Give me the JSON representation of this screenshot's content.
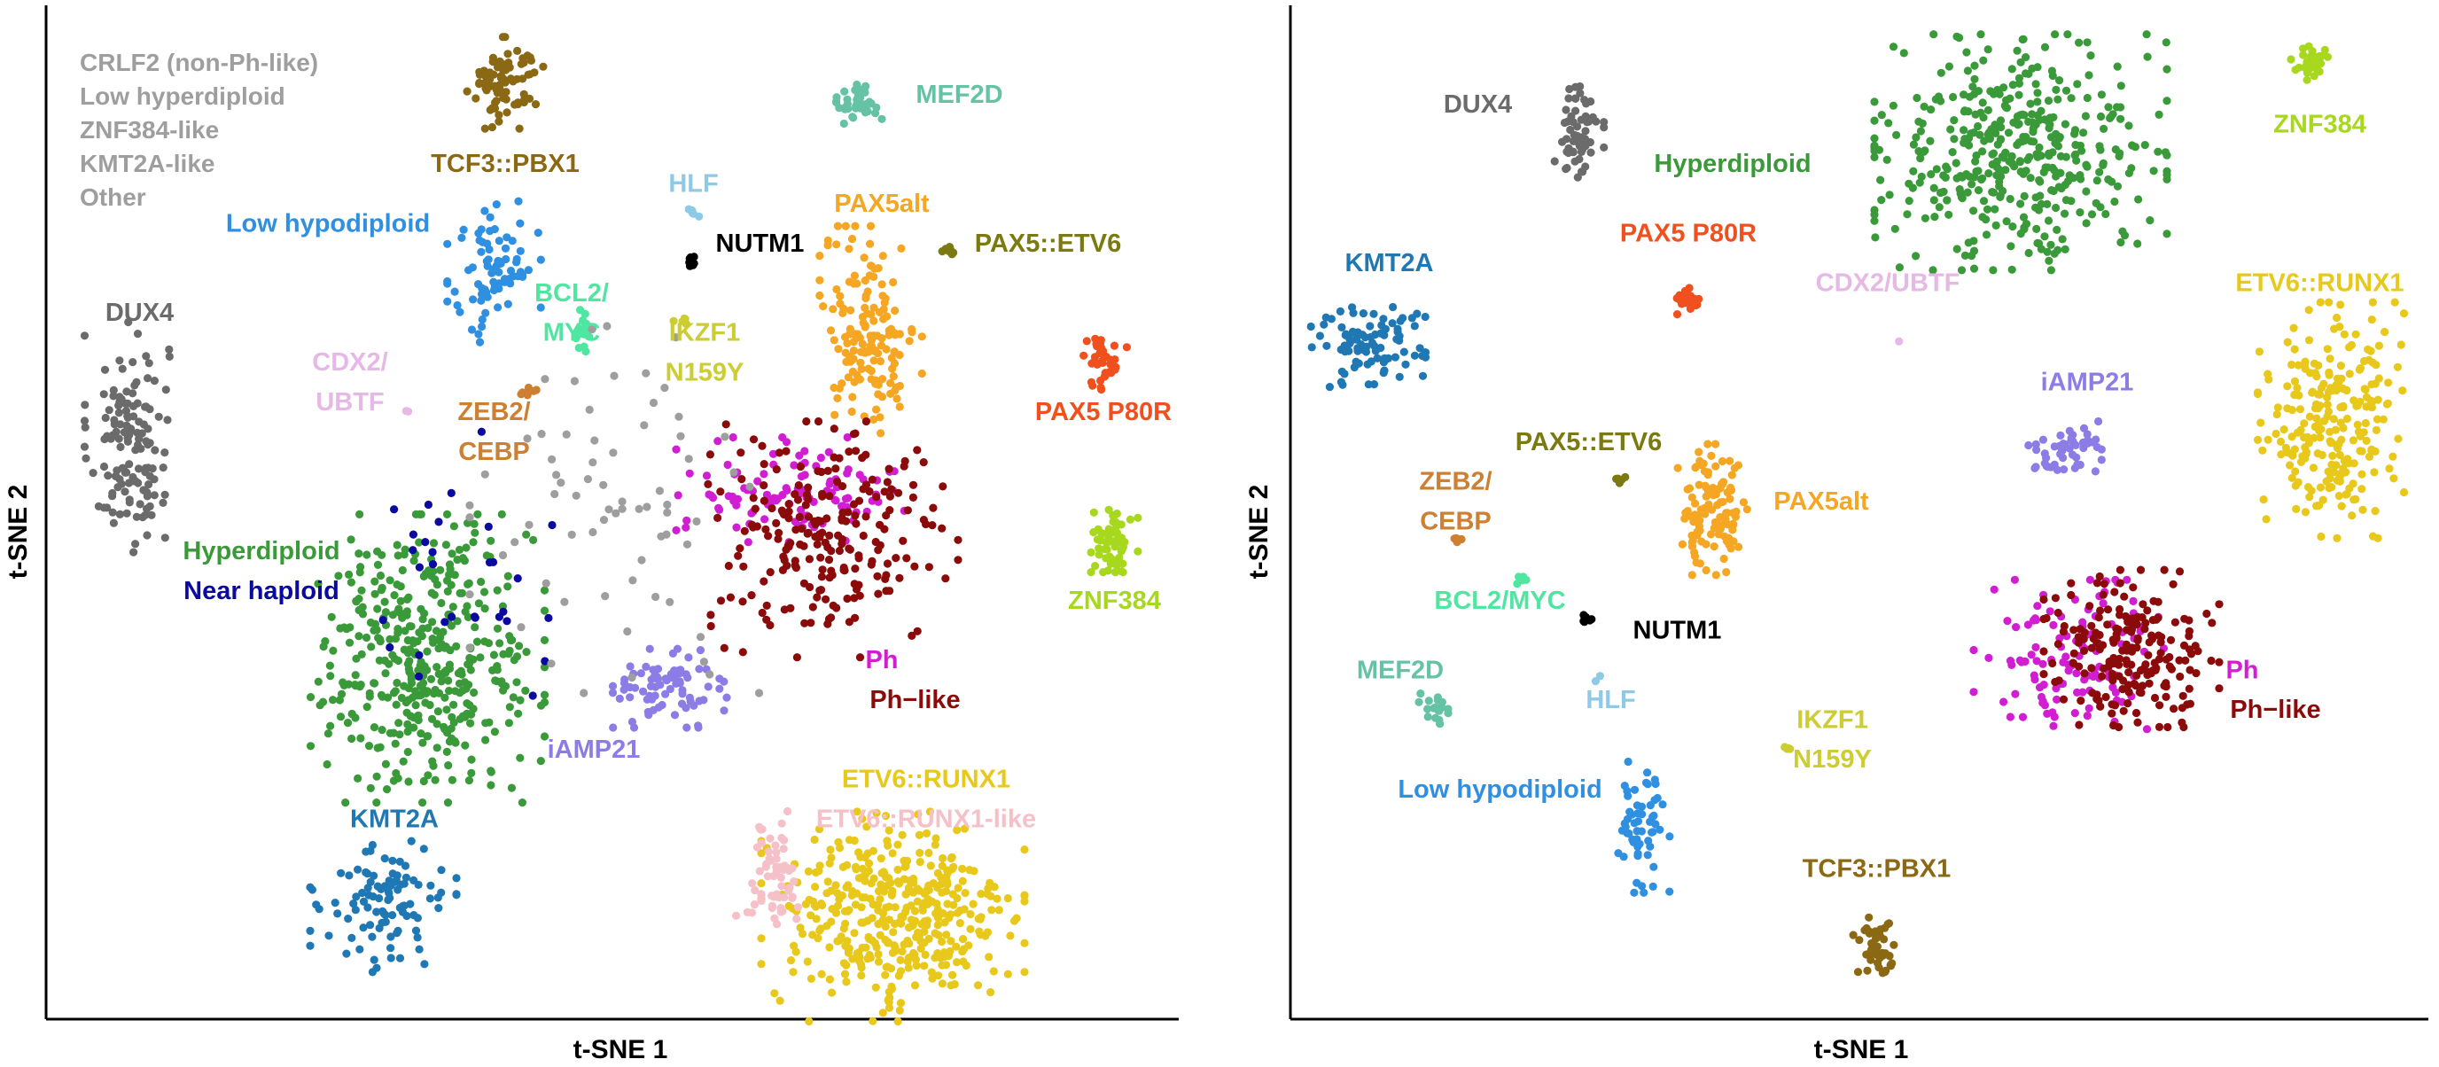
{
  "colors": {
    "grey": "#9e9e9e",
    "dux4": "#6b6b6b",
    "tcf3": "#8b6914",
    "mef2d": "#66c2a5",
    "hlf": "#8ecae6",
    "nutm1": "#000000",
    "lowhypo": "#2f8fe0",
    "bcl2": "#4ee6a0",
    "pax5alt": "#f5a623",
    "pax5etv6": "#7a7a10",
    "ikzf1": "#cccc33",
    "pax5p80r": "#f0501e",
    "cdx2": "#e6b8e6",
    "zeb2": "#cd7f32",
    "hyper": "#3a9a3a",
    "nearhap": "#0a0aa0",
    "iamp21": "#8c7ce6",
    "ph": "#d21ed2",
    "phlike": "#8b0a0a",
    "znf384": "#a8d81e",
    "kmt2a": "#1f78b4",
    "etv6": "#e8c81a",
    "etv6like": "#f5c0c8"
  },
  "chart_data": [
    {
      "type": "scatter",
      "panel": "left",
      "xlabel": "t-SNE 1",
      "ylabel": "t-SNE 2",
      "xlim": [
        0,
        100
      ],
      "ylim": [
        0,
        100
      ],
      "legend_entries": [
        "CRLF2 (non-Ph-like)",
        "Low hyperdiploid",
        "ZNF384-like",
        "KMT2A-like",
        "Other"
      ],
      "series": [
        {
          "name": "DUX4",
          "color": "dux4",
          "center": [
            6,
            57
          ],
          "spread": [
            3,
            9
          ],
          "n": 140
        },
        {
          "name": "TCF3::PBX1",
          "color": "tcf3",
          "center": [
            40,
            93
          ],
          "spread": [
            2.6,
            3.5
          ],
          "n": 80
        },
        {
          "name": "MEF2D",
          "color": "mef2d",
          "center": [
            72,
            91
          ],
          "spread": [
            1.6,
            1.6
          ],
          "n": 40
        },
        {
          "name": "HLF",
          "color": "hlf",
          "center": [
            57,
            80
          ],
          "spread": [
            0.5,
            0.5
          ],
          "n": 5
        },
        {
          "name": "NUTM1",
          "color": "nutm1",
          "center": [
            57,
            75
          ],
          "spread": [
            0.6,
            0.6
          ],
          "n": 8
        },
        {
          "name": "Low hypodiploid",
          "color": "lowhypo",
          "center": [
            39,
            74
          ],
          "spread": [
            3.2,
            6
          ],
          "n": 80
        },
        {
          "name": "BCL2/MYC",
          "color": "bcl2",
          "center": [
            47,
            68
          ],
          "spread": [
            0.8,
            1.6
          ],
          "n": 20
        },
        {
          "name": "PAX5alt",
          "color": "pax5alt",
          "center": [
            73,
            68
          ],
          "spread": [
            3.5,
            8
          ],
          "n": 150
        },
        {
          "name": "PAX5::ETV6",
          "color": "pax5etv6",
          "center": [
            80,
            76
          ],
          "spread": [
            0.6,
            0.6
          ],
          "n": 8
        },
        {
          "name": "IKZF1 N159Y",
          "color": "ikzf1",
          "center": [
            56,
            69
          ],
          "spread": [
            0.6,
            0.4
          ],
          "n": 6
        },
        {
          "name": "PAX5 P80R",
          "color": "pax5p80r",
          "center": [
            94,
            65
          ],
          "spread": [
            1.6,
            2.2
          ],
          "n": 40
        },
        {
          "name": "CDX2/UBTF",
          "color": "cdx2",
          "center": [
            31,
            60
          ],
          "spread": [
            0.3,
            0.3
          ],
          "n": 2
        },
        {
          "name": "ZEB2/CEBP",
          "color": "zeb2",
          "center": [
            42,
            62
          ],
          "spread": [
            0.8,
            0.5
          ],
          "n": 6
        },
        {
          "name": "Hyperdiploid",
          "color": "hyper",
          "center": [
            33,
            35
          ],
          "spread": [
            8,
            11
          ],
          "n": 420
        },
        {
          "name": "Near haploid",
          "color": "nearhap",
          "center": [
            35,
            42
          ],
          "spread": [
            7,
            12
          ],
          "n": 30
        },
        {
          "name": "iAMP21",
          "color": "iamp21",
          "center": [
            55,
            32
          ],
          "spread": [
            4,
            3
          ],
          "n": 80
        },
        {
          "name": "Ph",
          "color": "ph",
          "center": [
            66,
            52
          ],
          "spread": [
            8,
            4
          ],
          "n": 110
        },
        {
          "name": "Ph-like",
          "color": "phlike",
          "center": [
            69,
            47
          ],
          "spread": [
            9,
            9
          ],
          "n": 220
        },
        {
          "name": "ZNF384",
          "color": "znf384",
          "center": [
            95,
            47
          ],
          "spread": [
            1.6,
            2.5
          ],
          "n": 60
        },
        {
          "name": "KMT2A",
          "color": "kmt2a",
          "center": [
            29,
            10
          ],
          "spread": [
            5,
            5
          ],
          "n": 100
        },
        {
          "name": "ETV6::RUNX1",
          "color": "etv6",
          "center": [
            75,
            9
          ],
          "spread": [
            9,
            8
          ],
          "n": 400
        },
        {
          "name": "ETV6::RUNX1-like",
          "color": "etv6like",
          "center": [
            64,
            13
          ],
          "spread": [
            2.5,
            5
          ],
          "n": 60
        },
        {
          "name": "Other",
          "color": "grey",
          "center": [
            50,
            50
          ],
          "spread": [
            10,
            14
          ],
          "n": 70
        }
      ],
      "labels": [
        {
          "text": "TCF3::PBX1",
          "color": "tcf3",
          "at": [
            40,
            84
          ]
        },
        {
          "text": "MEF2D",
          "color": "mef2d",
          "at": [
            81,
            91
          ]
        },
        {
          "text": "HLF",
          "color": "hlf",
          "at": [
            57,
            82
          ]
        },
        {
          "text": "NUTM1",
          "color": "nutm1",
          "at": [
            63,
            76
          ]
        },
        {
          "text": "Low hypodiploid",
          "color": "lowhypo",
          "at": [
            24,
            78
          ]
        },
        {
          "text": "BCL2/",
          "color": "bcl2",
          "at": [
            46,
            71
          ]
        },
        {
          "text": "MYC",
          "color": "bcl2",
          "at": [
            46,
            67
          ]
        },
        {
          "text": "PAX5alt",
          "color": "pax5alt",
          "at": [
            74,
            80
          ]
        },
        {
          "text": "PAX5::ETV6",
          "color": "pax5etv6",
          "at": [
            89,
            76
          ]
        },
        {
          "text": "IKZF1",
          "color": "ikzf1",
          "at": [
            58,
            67
          ]
        },
        {
          "text": "N159Y",
          "color": "ikzf1",
          "at": [
            58,
            63
          ]
        },
        {
          "text": "PAX5 P80R",
          "color": "pax5p80r",
          "at": [
            94,
            59
          ]
        },
        {
          "text": "DUX4",
          "color": "dux4",
          "at": [
            7,
            69
          ]
        },
        {
          "text": "CDX2/",
          "color": "cdx2",
          "at": [
            26,
            64
          ]
        },
        {
          "text": "UBTF",
          "color": "cdx2",
          "at": [
            26,
            60
          ]
        },
        {
          "text": "ZEB2/",
          "color": "zeb2",
          "at": [
            39,
            59
          ]
        },
        {
          "text": "CEBP",
          "color": "zeb2",
          "at": [
            39,
            55
          ]
        },
        {
          "text": "Hyperdiploid",
          "color": "hyper",
          "at": [
            18,
            45
          ]
        },
        {
          "text": "Near haploid",
          "color": "nearhap",
          "at": [
            18,
            41
          ]
        },
        {
          "text": "iAMP21",
          "color": "iamp21",
          "at": [
            48,
            25
          ]
        },
        {
          "text": "Ph",
          "color": "ph",
          "at": [
            74,
            34
          ]
        },
        {
          "text": "Ph−like",
          "color": "phlike",
          "at": [
            77,
            30
          ]
        },
        {
          "text": "ZNF384",
          "color": "znf384",
          "at": [
            95,
            40
          ]
        },
        {
          "text": "KMT2A",
          "color": "kmt2a",
          "at": [
            30,
            18
          ]
        },
        {
          "text": "ETV6::RUNX1",
          "color": "etv6",
          "at": [
            78,
            22
          ]
        },
        {
          "text": "ETV6::RUNX1-like",
          "color": "etv6like",
          "at": [
            78,
            18
          ]
        }
      ]
    },
    {
      "type": "scatter",
      "panel": "right",
      "xlabel": "t-SNE 1",
      "ylabel": "t-SNE 2",
      "xlim": [
        0,
        100
      ],
      "ylim": [
        0,
        100
      ],
      "legend_entries": [],
      "series": [
        {
          "name": "DUX4",
          "color": "dux4",
          "center": [
            24,
            88
          ],
          "spread": [
            1.8,
            4
          ],
          "n": 60
        },
        {
          "name": "Hyperdiploid",
          "color": "hyper",
          "center": [
            64,
            86
          ],
          "spread": [
            10,
            9
          ],
          "n": 420
        },
        {
          "name": "ZNF384",
          "color": "znf384",
          "center": [
            90,
            95
          ],
          "spread": [
            1.3,
            1.3
          ],
          "n": 30
        },
        {
          "name": "KMT2A",
          "color": "kmt2a",
          "center": [
            5,
            67
          ],
          "spread": [
            4,
            4
          ],
          "n": 90
        },
        {
          "name": "PAX5 P80R",
          "color": "pax5p80r",
          "center": [
            34,
            71
          ],
          "spread": [
            1,
            1
          ],
          "n": 25
        },
        {
          "name": "CDX2/UBTF",
          "color": "cdx2",
          "center": [
            53,
            67
          ],
          "spread": [
            0.2,
            0.2
          ],
          "n": 1
        },
        {
          "name": "ETV6::RUNX1",
          "color": "etv6",
          "center": [
            92,
            59
          ],
          "spread": [
            5,
            9
          ],
          "n": 240
        },
        {
          "name": "iAMP21",
          "color": "iamp21",
          "center": [
            68,
            56
          ],
          "spread": [
            2.5,
            2.2
          ],
          "n": 50
        },
        {
          "name": "PAX5::ETV6",
          "color": "pax5etv6",
          "center": [
            28,
            53
          ],
          "spread": [
            0.4,
            0.4
          ],
          "n": 6
        },
        {
          "name": "PAX5alt",
          "color": "pax5alt",
          "center": [
            36,
            50
          ],
          "spread": [
            2.5,
            5
          ],
          "n": 110
        },
        {
          "name": "ZEB2/CEBP",
          "color": "zeb2",
          "center": [
            13,
            47
          ],
          "spread": [
            0.5,
            0.3
          ],
          "n": 5
        },
        {
          "name": "BCL2/MYC",
          "color": "bcl2",
          "center": [
            19,
            43
          ],
          "spread": [
            0.4,
            0.4
          ],
          "n": 5
        },
        {
          "name": "NUTM1",
          "color": "nutm1",
          "center": [
            25,
            39
          ],
          "spread": [
            0.5,
            0.5
          ],
          "n": 6
        },
        {
          "name": "MEF2D",
          "color": "mef2d",
          "center": [
            11,
            30
          ],
          "spread": [
            1,
            1.2
          ],
          "n": 20
        },
        {
          "name": "HLF",
          "color": "hlf",
          "center": [
            26,
            33
          ],
          "spread": [
            0.3,
            0.3
          ],
          "n": 2
        },
        {
          "name": "IKZF1 N159Y",
          "color": "ikzf1",
          "center": [
            43,
            26
          ],
          "spread": [
            0.4,
            0.3
          ],
          "n": 4
        },
        {
          "name": "Low hypodiploid",
          "color": "lowhypo",
          "center": [
            30,
            18
          ],
          "spread": [
            1.8,
            5
          ],
          "n": 60
        },
        {
          "name": "Ph",
          "color": "ph",
          "center": [
            69,
            35
          ],
          "spread": [
            7,
            6
          ],
          "n": 120
        },
        {
          "name": "Ph-like",
          "color": "phlike",
          "center": [
            74,
            36
          ],
          "spread": [
            6,
            6
          ],
          "n": 200
        },
        {
          "name": "TCF3::PBX1",
          "color": "tcf3",
          "center": [
            51,
            6
          ],
          "spread": [
            1.6,
            2.2
          ],
          "n": 50
        }
      ],
      "labels": [
        {
          "text": "DUX4",
          "color": "dux4",
          "at": [
            15,
            90
          ]
        },
        {
          "text": "Hyperdiploid",
          "color": "hyper",
          "at": [
            38,
            84
          ]
        },
        {
          "text": "ZNF384",
          "color": "znf384",
          "at": [
            91,
            88
          ]
        },
        {
          "text": "KMT2A",
          "color": "kmt2a",
          "at": [
            7,
            74
          ]
        },
        {
          "text": "PAX5 P80R",
          "color": "pax5p80r",
          "at": [
            34,
            77
          ]
        },
        {
          "text": "CDX2/UBTF",
          "color": "cdx2",
          "at": [
            52,
            72
          ]
        },
        {
          "text": "ETV6::RUNX1",
          "color": "etv6",
          "at": [
            91,
            72
          ]
        },
        {
          "text": "iAMP21",
          "color": "iamp21",
          "at": [
            70,
            62
          ]
        },
        {
          "text": "PAX5::ETV6",
          "color": "pax5etv6",
          "at": [
            25,
            56
          ]
        },
        {
          "text": "PAX5alt",
          "color": "pax5alt",
          "at": [
            46,
            50
          ]
        },
        {
          "text": "ZEB2/",
          "color": "zeb2",
          "at": [
            13,
            52
          ]
        },
        {
          "text": "CEBP",
          "color": "zeb2",
          "at": [
            13,
            48
          ]
        },
        {
          "text": "BCL2/MYC",
          "color": "bcl2",
          "at": [
            17,
            40
          ]
        },
        {
          "text": "NUTM1",
          "color": "nutm1",
          "at": [
            33,
            37
          ]
        },
        {
          "text": "MEF2D",
          "color": "mef2d",
          "at": [
            8,
            33
          ]
        },
        {
          "text": "HLF",
          "color": "hlf",
          "at": [
            27,
            30
          ]
        },
        {
          "text": "IKZF1",
          "color": "ikzf1",
          "at": [
            47,
            28
          ]
        },
        {
          "text": "N159Y",
          "color": "ikzf1",
          "at": [
            47,
            24
          ]
        },
        {
          "text": "Low hypodiploid",
          "color": "lowhypo",
          "at": [
            17,
            21
          ]
        },
        {
          "text": "Ph",
          "color": "ph",
          "at": [
            84,
            33
          ]
        },
        {
          "text": "Ph−like",
          "color": "phlike",
          "at": [
            87,
            29
          ]
        },
        {
          "text": "TCF3::PBX1",
          "color": "tcf3",
          "at": [
            51,
            13
          ]
        }
      ]
    }
  ]
}
